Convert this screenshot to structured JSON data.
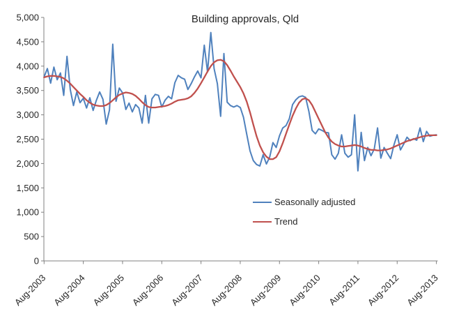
{
  "chart_data": {
    "type": "line",
    "title": "Building approvals, Qld",
    "xlabel": "",
    "ylabel": "",
    "ylim": [
      0,
      5000
    ],
    "y_tick_step": 500,
    "y_tick_labels": [
      "0",
      "500",
      "1,000",
      "1,500",
      "2,000",
      "2,500",
      "3,000",
      "3,500",
      "4,000",
      "4,500",
      "5,000"
    ],
    "x_unit": "monthly",
    "x_start": "Aug-2003",
    "x_end": "Aug-2013",
    "x_tick_labels": [
      "Aug-2003",
      "Aug-2004",
      "Aug-2005",
      "Aug-2006",
      "Aug-2007",
      "Aug-2008",
      "Aug-2009",
      "Aug-2010",
      "Aug-2011",
      "Aug-2012",
      "Aug-2013"
    ],
    "x_tick_every_points": 12,
    "grid": false,
    "legend_position": "inside-lower-center",
    "axis_color": "#808080",
    "text_color": "#262626",
    "series": [
      {
        "name": "Seasonally adjusted",
        "color": "#4F81BD",
        "stroke_width": 2,
        "values": [
          3780,
          3950,
          3650,
          3980,
          3720,
          3860,
          3400,
          4200,
          3520,
          3190,
          3470,
          3250,
          3340,
          3140,
          3350,
          3090,
          3300,
          3470,
          3320,
          2810,
          3100,
          4450,
          3280,
          3550,
          3450,
          3110,
          3240,
          3060,
          3210,
          3140,
          2830,
          3400,
          2830,
          3330,
          3420,
          3400,
          3160,
          3300,
          3380,
          3330,
          3660,
          3810,
          3760,
          3730,
          3520,
          3640,
          3780,
          3900,
          3760,
          4430,
          3880,
          4690,
          3950,
          3640,
          2970,
          4260,
          3260,
          3190,
          3160,
          3190,
          3150,
          2950,
          2600,
          2260,
          2060,
          1980,
          1950,
          2180,
          1990,
          2130,
          2430,
          2330,
          2570,
          2730,
          2780,
          2920,
          3210,
          3310,
          3370,
          3390,
          3360,
          3070,
          2680,
          2610,
          2710,
          2680,
          2640,
          2630,
          2180,
          2090,
          2210,
          2590,
          2210,
          2130,
          2180,
          3000,
          1850,
          2640,
          2060,
          2330,
          2160,
          2300,
          2730,
          2110,
          2330,
          2210,
          2100,
          2380,
          2590,
          2280,
          2400,
          2540,
          2470,
          2510,
          2480,
          2730,
          2450,
          2660,
          2560,
          2580,
          2590
        ]
      },
      {
        "name": "Trend",
        "color": "#C0504D",
        "stroke_width": 2.3,
        "values": [
          3770,
          3790,
          3800,
          3800,
          3790,
          3780,
          3750,
          3700,
          3640,
          3570,
          3500,
          3430,
          3370,
          3300,
          3250,
          3210,
          3190,
          3180,
          3180,
          3200,
          3240,
          3300,
          3360,
          3410,
          3440,
          3460,
          3450,
          3430,
          3390,
          3330,
          3260,
          3200,
          3160,
          3150,
          3150,
          3160,
          3170,
          3180,
          3200,
          3230,
          3270,
          3300,
          3310,
          3320,
          3340,
          3380,
          3450,
          3540,
          3650,
          3770,
          3890,
          4000,
          4080,
          4120,
          4130,
          4100,
          4020,
          3910,
          3790,
          3680,
          3570,
          3440,
          3270,
          3050,
          2800,
          2560,
          2370,
          2230,
          2140,
          2090,
          2090,
          2130,
          2250,
          2420,
          2610,
          2800,
          2980,
          3130,
          3250,
          3320,
          3340,
          3300,
          3200,
          3060,
          2920,
          2780,
          2640,
          2530,
          2450,
          2400,
          2370,
          2350,
          2350,
          2360,
          2370,
          2380,
          2370,
          2350,
          2320,
          2300,
          2280,
          2280,
          2270,
          2270,
          2280,
          2290,
          2310,
          2340,
          2370,
          2400,
          2430,
          2460,
          2480,
          2500,
          2520,
          2540,
          2560,
          2570,
          2580,
          2580,
          2580
        ]
      }
    ]
  }
}
